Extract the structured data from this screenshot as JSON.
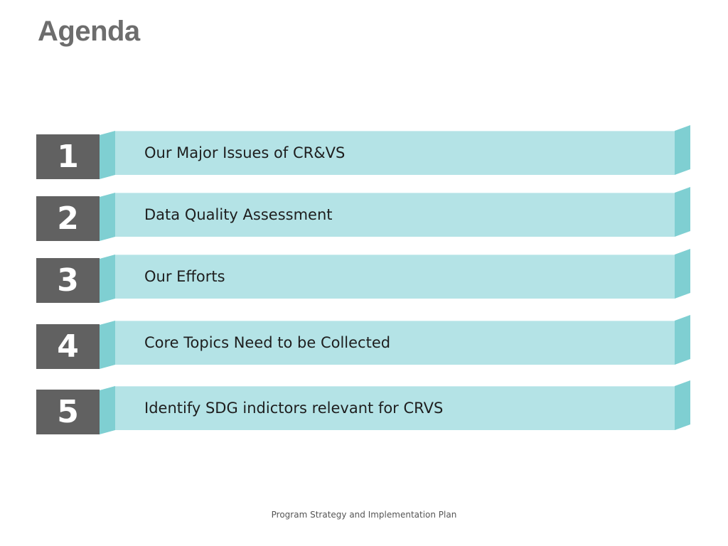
{
  "title": "Agenda",
  "colors": {
    "number_box": "#616161",
    "band": "#b4e3e6",
    "fold": "#7fcfd2",
    "title": "#6d6d6d"
  },
  "items": [
    {
      "number": "1",
      "label": "Our Major Issues of CR&VS"
    },
    {
      "number": "2",
      "label": "Data Quality Assessment"
    },
    {
      "number": "3",
      "label": "Our Efforts"
    },
    {
      "number": "4",
      "label": "Core Topics Need to be Collected"
    },
    {
      "number": "5",
      "label": "Identify SDG indictors relevant for CRVS"
    }
  ],
  "footer": "Program Strategy and Implementation Plan"
}
